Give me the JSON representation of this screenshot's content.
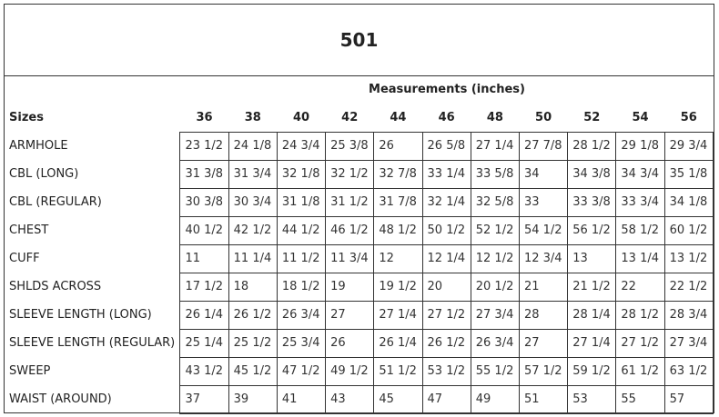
{
  "title": "501",
  "measurements_label": "Measurements (inches)",
  "sizes_label": "Sizes",
  "sizes": [
    "36",
    "38",
    "40",
    "42",
    "44",
    "46",
    "48",
    "50",
    "52",
    "54",
    "56"
  ],
  "rows": [
    {
      "name": "ARMHOLE",
      "values": [
        "23 1/2",
        "24 1/8",
        "24 3/4",
        "25 3/8",
        "26",
        "26 5/8",
        "27 1/4",
        "27 7/8",
        "28 1/2",
        "29 1/8",
        "29 3/4"
      ]
    },
    {
      "name": "CBL (LONG)",
      "values": [
        "31 3/8",
        "31 3/4",
        "32 1/8",
        "32 1/2",
        "32 7/8",
        "33 1/4",
        "33 5/8",
        "34",
        "34 3/8",
        "34 3/4",
        "35 1/8"
      ]
    },
    {
      "name": "CBL (REGULAR)",
      "values": [
        "30 3/8",
        "30 3/4",
        "31 1/8",
        "31 1/2",
        "31 7/8",
        "32 1/4",
        "32 5/8",
        "33",
        "33 3/8",
        "33 3/4",
        "34 1/8"
      ]
    },
    {
      "name": "CHEST",
      "values": [
        "40 1/2",
        "42 1/2",
        "44 1/2",
        "46 1/2",
        "48 1/2",
        "50 1/2",
        "52 1/2",
        "54 1/2",
        "56 1/2",
        "58 1/2",
        "60 1/2"
      ]
    },
    {
      "name": "CUFF",
      "values": [
        "11",
        "11 1/4",
        "11 1/2",
        "11 3/4",
        "12",
        "12 1/4",
        "12 1/2",
        "12 3/4",
        "13",
        "13 1/4",
        "13 1/2"
      ]
    },
    {
      "name": "SHLDS ACROSS",
      "values": [
        "17 1/2",
        "18",
        "18 1/2",
        "19",
        "19 1/2",
        "20",
        "20 1/2",
        "21",
        "21 1/2",
        "22",
        "22 1/2"
      ]
    },
    {
      "name": "SLEEVE LENGTH (LONG)",
      "values": [
        "26 1/4",
        "26 1/2",
        "26 3/4",
        "27",
        "27 1/4",
        "27 1/2",
        "27 3/4",
        "28",
        "28 1/4",
        "28 1/2",
        "28 3/4"
      ]
    },
    {
      "name": "SLEEVE LENGTH (REGULAR)",
      "values": [
        "25 1/4",
        "25 1/2",
        "25 3/4",
        "26",
        "26 1/4",
        "26 1/2",
        "26 3/4",
        "27",
        "27 1/4",
        "27 1/2",
        "27 3/4"
      ]
    },
    {
      "name": "SWEEP",
      "values": [
        "43 1/2",
        "45 1/2",
        "47 1/2",
        "49 1/2",
        "51 1/2",
        "53 1/2",
        "55 1/2",
        "57 1/2",
        "59 1/2",
        "61 1/2",
        "63 1/2"
      ]
    },
    {
      "name": "WAIST (AROUND)",
      "values": [
        "37",
        "39",
        "41",
        "43",
        "45",
        "47",
        "49",
        "51",
        "53",
        "55",
        "57"
      ]
    }
  ]
}
